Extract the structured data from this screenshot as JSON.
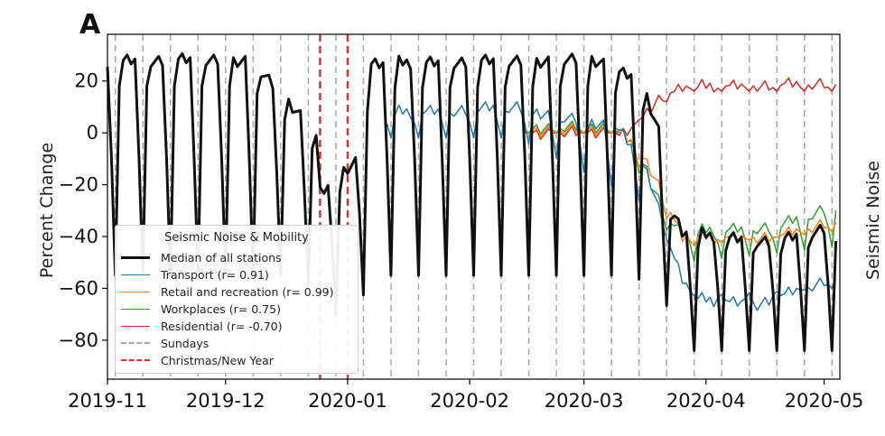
{
  "panel_label": "A",
  "colors": {
    "median": "#111111",
    "transport": "#1f77b4",
    "retail": "#ff7f0e",
    "workplaces": "#2ca02c",
    "residential": "#d62728",
    "sundays": "#a8a8a8",
    "christmas": "#e0302f"
  },
  "chart_data": {
    "type": "line",
    "ylabel": "Percent Change",
    "ylabel_right": "Seismic Noise Change (%)",
    "ylim": [
      -95,
      38
    ],
    "xlim": [
      "2019-11-01",
      "2020-05-05"
    ],
    "x_ticks": [
      "2019-11",
      "2019-12",
      "2020-01",
      "2020-02",
      "2020-03",
      "2020-04",
      "2020-05"
    ],
    "y_ticks": [
      20,
      0,
      -20,
      -40,
      -60,
      -80
    ],
    "grid": false,
    "legend": {
      "placement": "lower-left",
      "title": "Seismic Noise & Mobility",
      "entries": [
        "Median of all stations",
        "Transport (r= 0.91)",
        "Retail and recreation (r= 0.99)",
        "Workplaces (r= 0.75)",
        "Residential (r= -0.70)",
        "Sundays",
        "Christmas/New Year"
      ]
    },
    "sundays": [
      "2019-11-03",
      "2019-11-10",
      "2019-11-17",
      "2019-11-24",
      "2019-12-01",
      "2019-12-08",
      "2019-12-15",
      "2019-12-22",
      "2019-12-29",
      "2020-01-05",
      "2020-01-12",
      "2020-01-19",
      "2020-01-26",
      "2020-02-02",
      "2020-02-09",
      "2020-02-16",
      "2020-02-23",
      "2020-03-01",
      "2020-03-08",
      "2020-03-15",
      "2020-03-22",
      "2020-03-29",
      "2020-04-05",
      "2020-04-12",
      "2020-04-19",
      "2020-04-26",
      "2020-05-03"
    ],
    "holidays": [
      "2019-12-25",
      "2020-01-01"
    ],
    "series": [
      {
        "name": "Median of all stations",
        "key": "median",
        "x_start": "2019-11-01",
        "x_end": "2020-05-04",
        "weekday_level": [
          [
            -1,
            28
          ],
          [
            36,
            28
          ],
          [
            53,
            0
          ],
          [
            54,
            -22
          ],
          [
            63,
            -12
          ],
          [
            67,
            27
          ],
          [
            123,
            28
          ],
          [
            135,
            22
          ],
          [
            140,
            0
          ],
          [
            142,
            -25
          ],
          [
            146,
            -38
          ],
          [
            155,
            -40
          ],
          [
            170,
            -42
          ],
          [
            185,
            -36
          ]
        ],
        "sunday_depth": [
          [
            -1,
            -55
          ],
          [
            50,
            -55
          ],
          [
            54,
            -70
          ],
          [
            63,
            -70
          ],
          [
            67,
            -55
          ],
          [
            130,
            -55
          ],
          [
            140,
            -58
          ],
          [
            146,
            -84
          ],
          [
            185,
            -84
          ]
        ]
      },
      {
        "name": "Transport (r= 0.91)",
        "key": "transport",
        "x_start": "2020-01-11",
        "x_end": "2020-05-04",
        "weekday_level": [
          [
            71,
            8
          ],
          [
            90,
            9
          ],
          [
            104,
            10
          ],
          [
            118,
            5
          ],
          [
            130,
            2
          ],
          [
            136,
            -10
          ],
          [
            142,
            -40
          ],
          [
            146,
            -56
          ],
          [
            150,
            -64
          ],
          [
            165,
            -66
          ],
          [
            185,
            -56
          ]
        ],
        "sunday_depth": [
          [
            71,
            -2
          ],
          [
            104,
            -2
          ],
          [
            140,
            -30
          ],
          [
            146,
            -63
          ],
          [
            185,
            -60
          ]
        ]
      },
      {
        "name": "Retail and recreation (r= 0.99)",
        "key": "retail",
        "x_start": "2020-02-15",
        "x_end": "2020-05-04",
        "weekday_level": [
          [
            106,
            1
          ],
          [
            130,
            1
          ],
          [
            134,
            -3
          ],
          [
            138,
            -15
          ],
          [
            143,
            -30
          ],
          [
            146,
            -40
          ],
          [
            170,
            -40
          ],
          [
            185,
            -34
          ]
        ],
        "sunday_depth": [
          [
            106,
            0
          ],
          [
            130,
            0
          ],
          [
            146,
            -44
          ],
          [
            185,
            -38
          ]
        ]
      },
      {
        "name": "Workplaces (r= 0.75)",
        "key": "workplaces",
        "x_start": "2020-02-15",
        "x_end": "2020-05-04",
        "weekday_level": [
          [
            106,
            2
          ],
          [
            130,
            2
          ],
          [
            134,
            -4
          ],
          [
            138,
            -20
          ],
          [
            142,
            -33
          ],
          [
            146,
            -38
          ],
          [
            170,
            -36
          ],
          [
            185,
            -28
          ]
        ],
        "sunday_depth": [
          [
            106,
            0
          ],
          [
            130,
            0
          ],
          [
            146,
            -50
          ],
          [
            185,
            -44
          ]
        ]
      },
      {
        "name": "Residential (r= -0.70)",
        "key": "residential",
        "x_start": "2020-02-15",
        "x_end": "2020-05-04",
        "weekday_level": [
          [
            106,
            0
          ],
          [
            130,
            0
          ],
          [
            134,
            3
          ],
          [
            138,
            9
          ],
          [
            142,
            15
          ],
          [
            146,
            18
          ],
          [
            185,
            19
          ]
        ],
        "sunday_depth": [
          [
            106,
            0
          ],
          [
            130,
            0
          ],
          [
            146,
            16
          ],
          [
            185,
            16
          ]
        ]
      }
    ]
  }
}
